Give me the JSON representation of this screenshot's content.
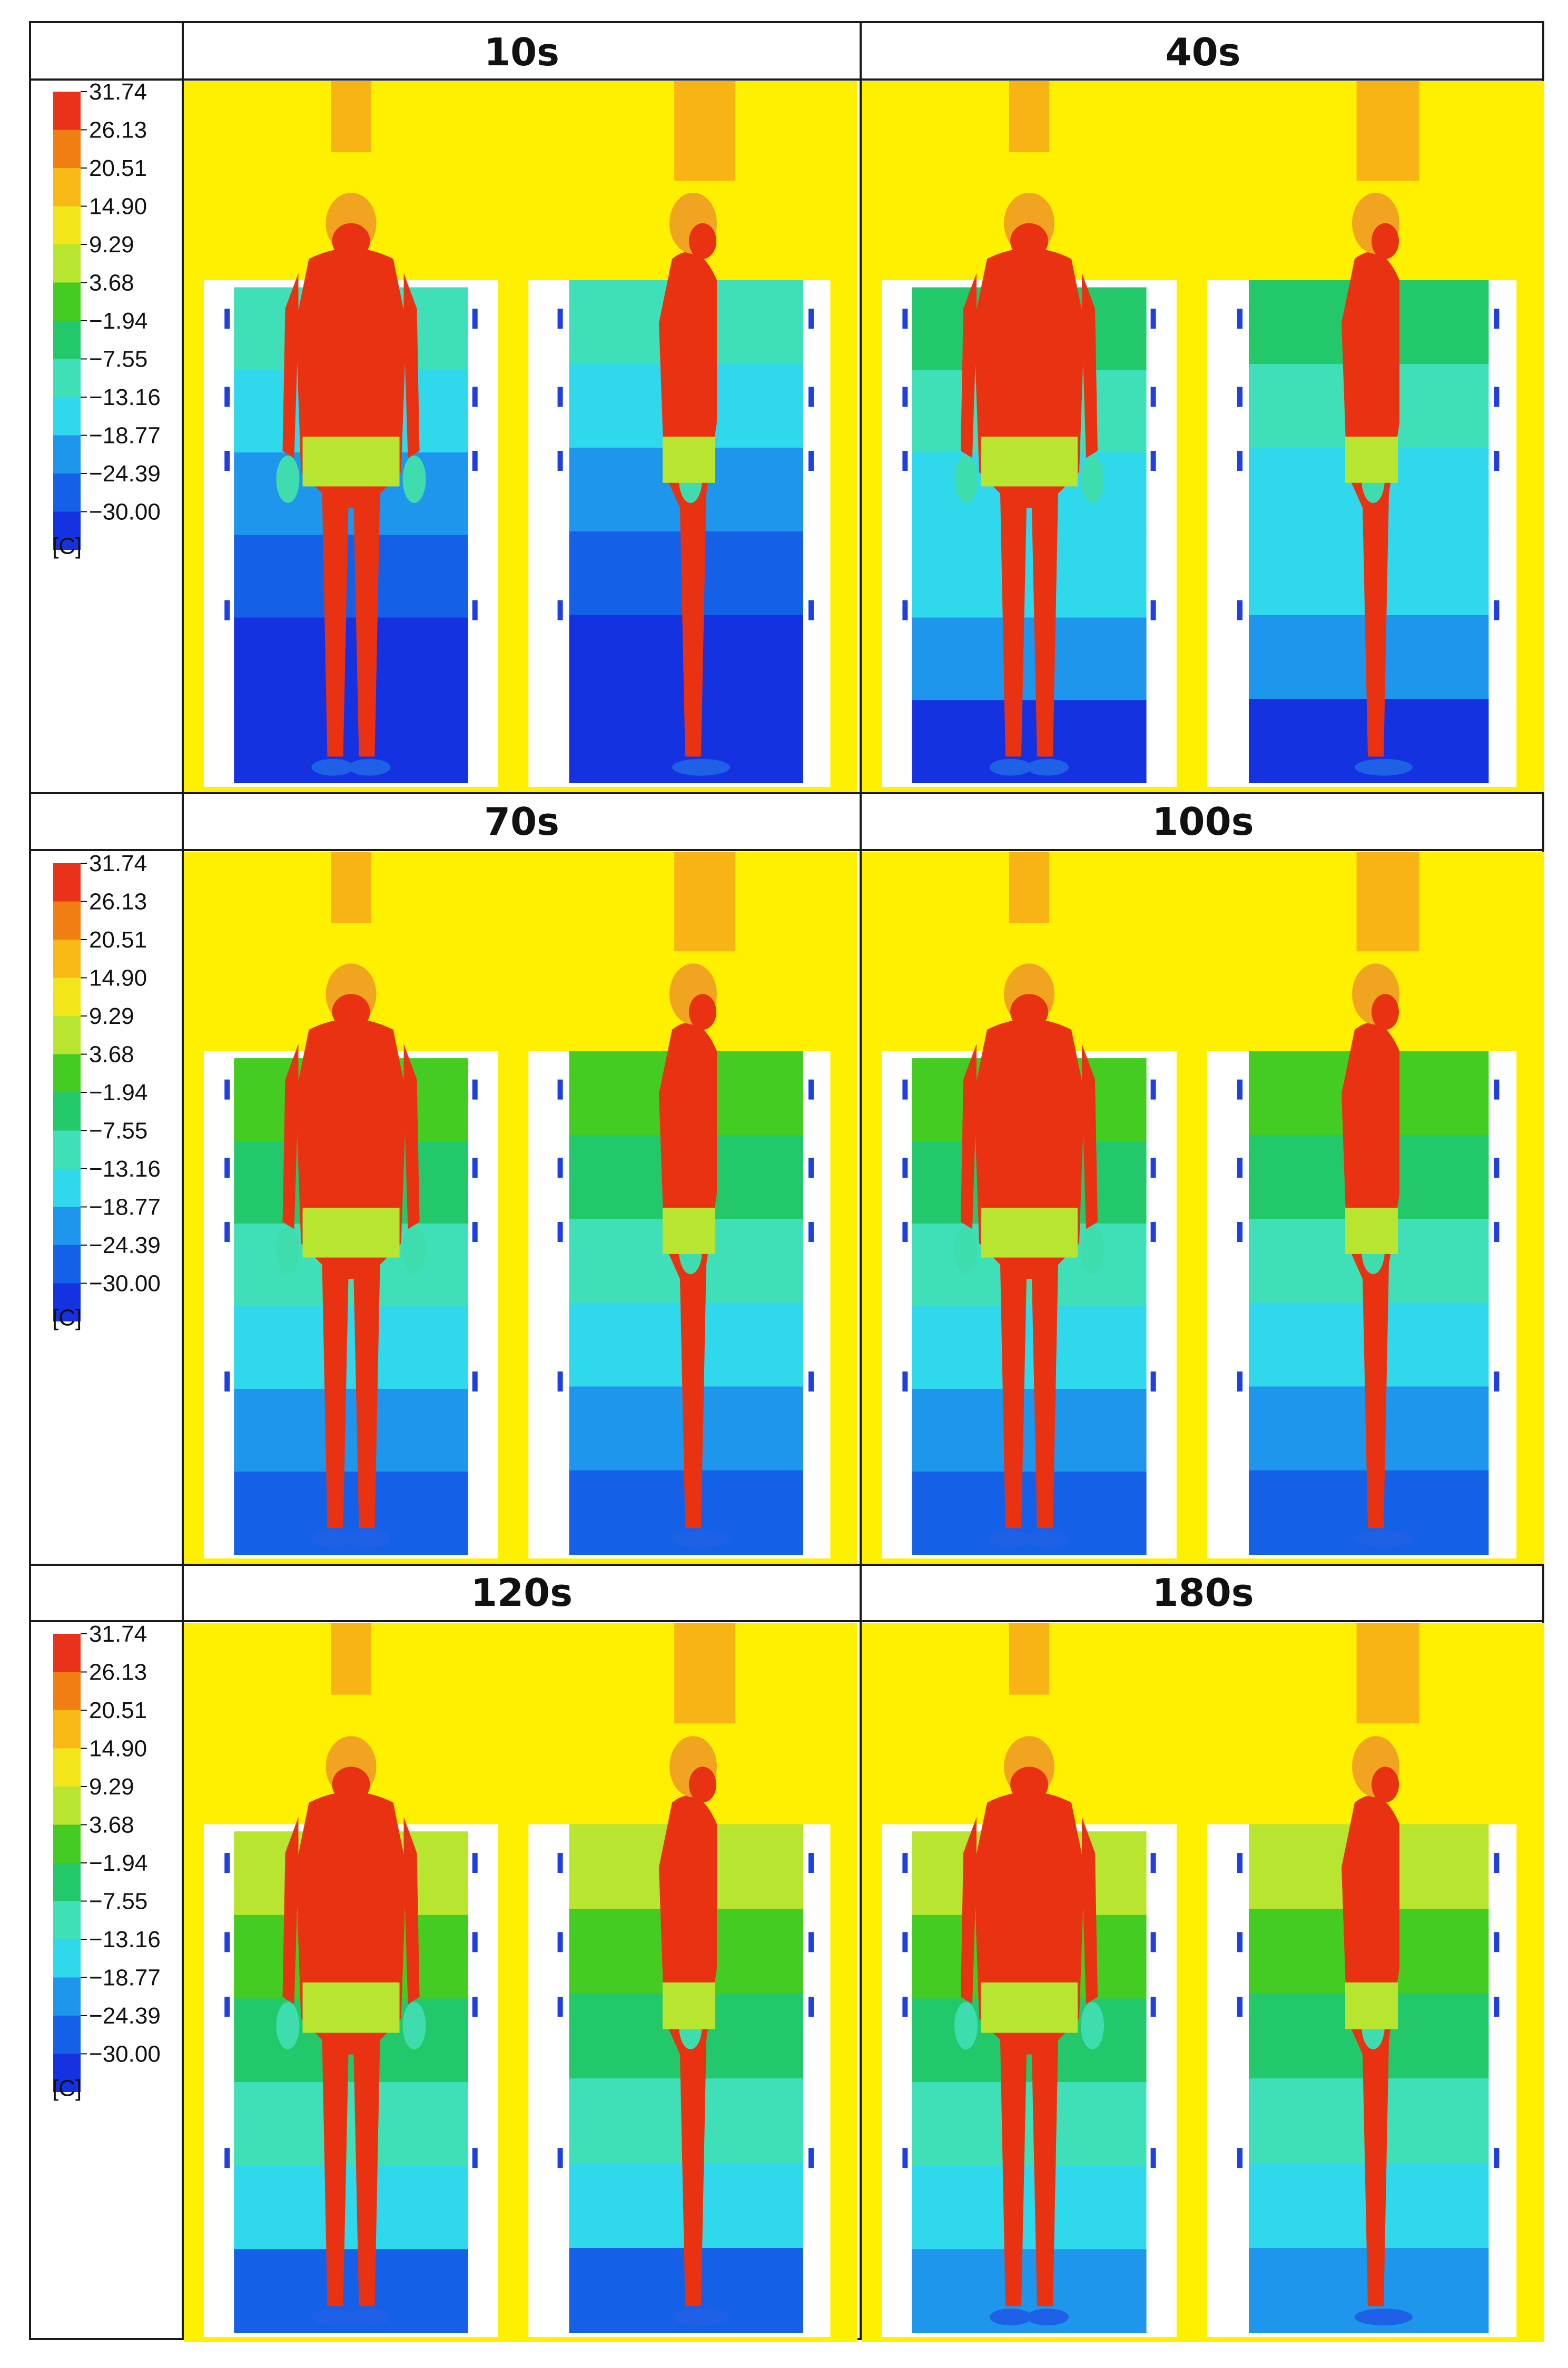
{
  "legend": {
    "values": [
      "31.74",
      "26.13",
      "20.51",
      "14.90",
      "9.29",
      "3.68",
      "−1.94",
      "−7.55",
      "−13.16",
      "−18.77",
      "−24.39",
      "−30.00"
    ],
    "unit": "[C]",
    "colors": [
      "#e8321a",
      "#f07e12",
      "#f8b816",
      "#f2e51a",
      "#b8e530",
      "#44cc22",
      "#22c86a",
      "#3fe0b8",
      "#30d8ec",
      "#1e96ec",
      "#1460e6",
      "#1432e0"
    ]
  },
  "rows": [
    {
      "times": [
        "10s",
        "40s"
      ]
    },
    {
      "times": [
        "70s",
        "100s"
      ]
    },
    {
      "times": [
        "120s",
        "180s"
      ]
    }
  ],
  "colors": {
    "background_air": "#fff000",
    "body": "#e83212",
    "head": "#f0a420",
    "rack": "#1f3fe0",
    "wall": "#ffffff"
  }
}
